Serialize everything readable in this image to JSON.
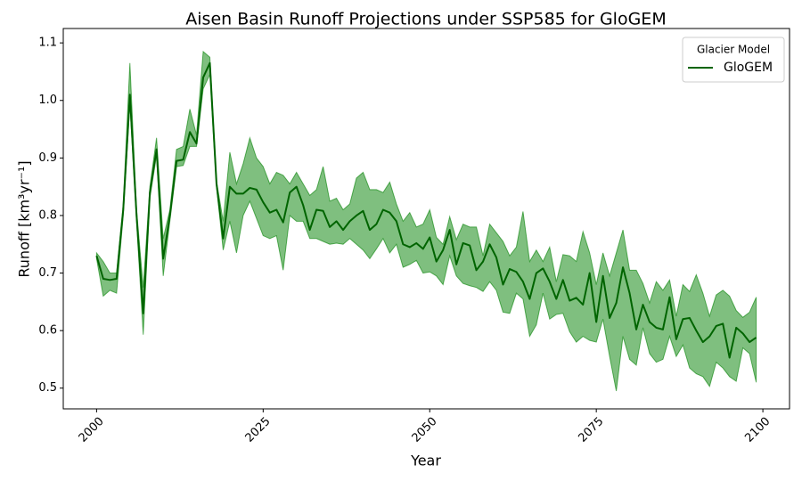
{
  "chart_data": {
    "type": "line",
    "title": "Aisen Basin Runoff Projections under SSP585 for GloGEM",
    "x_label": "Year",
    "y_label": "Runoff [km³yr⁻¹]",
    "x": [
      2000,
      2001,
      2002,
      2003,
      2004,
      2005,
      2006,
      2007,
      2008,
      2009,
      2010,
      2011,
      2012,
      2013,
      2014,
      2015,
      2016,
      2017,
      2018,
      2019,
      2020,
      2021,
      2022,
      2023,
      2024,
      2025,
      2026,
      2027,
      2028,
      2029,
      2030,
      2031,
      2032,
      2033,
      2034,
      2035,
      2036,
      2037,
      2038,
      2039,
      2040,
      2041,
      2042,
      2043,
      2044,
      2045,
      2046,
      2047,
      2048,
      2049,
      2050,
      2051,
      2052,
      2053,
      2054,
      2055,
      2056,
      2057,
      2058,
      2059,
      2060,
      2061,
      2062,
      2063,
      2064,
      2065,
      2066,
      2067,
      2068,
      2069,
      2070,
      2071,
      2072,
      2073,
      2074,
      2075,
      2076,
      2077,
      2078,
      2079,
      2080,
      2081,
      2082,
      2083,
      2084,
      2085,
      2086,
      2087,
      2088,
      2089,
      2090,
      2091,
      2092,
      2093,
      2094,
      2095,
      2096,
      2097,
      2098,
      2099
    ],
    "series": [
      {
        "name": "GloGEM",
        "color": "#006400",
        "values": [
          0.73,
          0.69,
          0.688,
          0.69,
          0.81,
          1.01,
          0.8,
          0.63,
          0.84,
          0.915,
          0.725,
          0.8,
          0.895,
          0.897,
          0.945,
          0.925,
          1.04,
          1.065,
          0.855,
          0.76,
          0.85,
          0.838,
          0.838,
          0.848,
          0.845,
          0.823,
          0.805,
          0.81,
          0.788,
          0.84,
          0.85,
          0.818,
          0.775,
          0.81,
          0.808,
          0.78,
          0.79,
          0.775,
          0.79,
          0.8,
          0.808,
          0.775,
          0.785,
          0.81,
          0.805,
          0.79,
          0.75,
          0.745,
          0.752,
          0.742,
          0.762,
          0.72,
          0.74,
          0.775,
          0.715,
          0.752,
          0.748,
          0.705,
          0.72,
          0.75,
          0.727,
          0.68,
          0.707,
          0.702,
          0.685,
          0.655,
          0.7,
          0.708,
          0.685,
          0.655,
          0.688,
          0.652,
          0.657,
          0.645,
          0.7,
          0.615,
          0.695,
          0.622,
          0.648,
          0.71,
          0.665,
          0.602,
          0.645,
          0.615,
          0.605,
          0.602,
          0.658,
          0.585,
          0.62,
          0.622,
          0.6,
          0.58,
          0.59,
          0.608,
          0.612,
          0.553,
          0.605,
          0.595,
          0.58,
          0.588
        ]
      }
    ],
    "band": {
      "color": "#008000",
      "opacity": 0.5,
      "lower": [
        0.725,
        0.66,
        0.67,
        0.665,
        0.8,
        0.995,
        0.79,
        0.593,
        0.83,
        0.905,
        0.695,
        0.79,
        0.885,
        0.887,
        0.92,
        0.92,
        1.02,
        1.045,
        0.85,
        0.74,
        0.79,
        0.735,
        0.8,
        0.825,
        0.795,
        0.765,
        0.76,
        0.765,
        0.705,
        0.8,
        0.79,
        0.79,
        0.76,
        0.76,
        0.755,
        0.75,
        0.752,
        0.75,
        0.76,
        0.75,
        0.74,
        0.725,
        0.742,
        0.76,
        0.735,
        0.75,
        0.71,
        0.715,
        0.722,
        0.7,
        0.702,
        0.695,
        0.68,
        0.73,
        0.695,
        0.682,
        0.678,
        0.675,
        0.668,
        0.685,
        0.67,
        0.632,
        0.63,
        0.665,
        0.655,
        0.59,
        0.61,
        0.665,
        0.62,
        0.628,
        0.63,
        0.598,
        0.58,
        0.59,
        0.583,
        0.58,
        0.62,
        0.555,
        0.495,
        0.59,
        0.55,
        0.54,
        0.605,
        0.56,
        0.545,
        0.55,
        0.59,
        0.555,
        0.575,
        0.535,
        0.525,
        0.52,
        0.503,
        0.545,
        0.535,
        0.52,
        0.512,
        0.57,
        0.56,
        0.51
      ],
      "upper": [
        0.735,
        0.72,
        0.7,
        0.7,
        0.82,
        1.065,
        0.81,
        0.675,
        0.85,
        0.935,
        0.76,
        0.81,
        0.915,
        0.92,
        0.985,
        0.94,
        1.085,
        1.075,
        0.86,
        0.79,
        0.91,
        0.855,
        0.89,
        0.935,
        0.9,
        0.885,
        0.855,
        0.875,
        0.87,
        0.855,
        0.875,
        0.855,
        0.835,
        0.845,
        0.885,
        0.825,
        0.83,
        0.81,
        0.82,
        0.865,
        0.875,
        0.845,
        0.845,
        0.84,
        0.858,
        0.82,
        0.79,
        0.805,
        0.78,
        0.785,
        0.81,
        0.762,
        0.75,
        0.798,
        0.758,
        0.785,
        0.78,
        0.78,
        0.73,
        0.785,
        0.77,
        0.755,
        0.73,
        0.745,
        0.807,
        0.72,
        0.74,
        0.72,
        0.745,
        0.685,
        0.732,
        0.73,
        0.72,
        0.772,
        0.735,
        0.68,
        0.735,
        0.695,
        0.735,
        0.775,
        0.705,
        0.705,
        0.682,
        0.648,
        0.685,
        0.67,
        0.688,
        0.625,
        0.68,
        0.668,
        0.697,
        0.665,
        0.625,
        0.662,
        0.67,
        0.66,
        0.635,
        0.623,
        0.632,
        0.658
      ]
    },
    "xlim": [
      1995,
      2104
    ],
    "ylim": [
      0.464,
      1.125
    ],
    "xticks": [
      2000,
      2025,
      2050,
      2075,
      2100
    ],
    "yticks": [
      0.5,
      0.6,
      0.7,
      0.8,
      0.9,
      {
        "value": 1,
        "label": "1.0"
      },
      1.1
    ],
    "legend": {
      "title": "Glacier Model",
      "position": "upper right"
    }
  }
}
